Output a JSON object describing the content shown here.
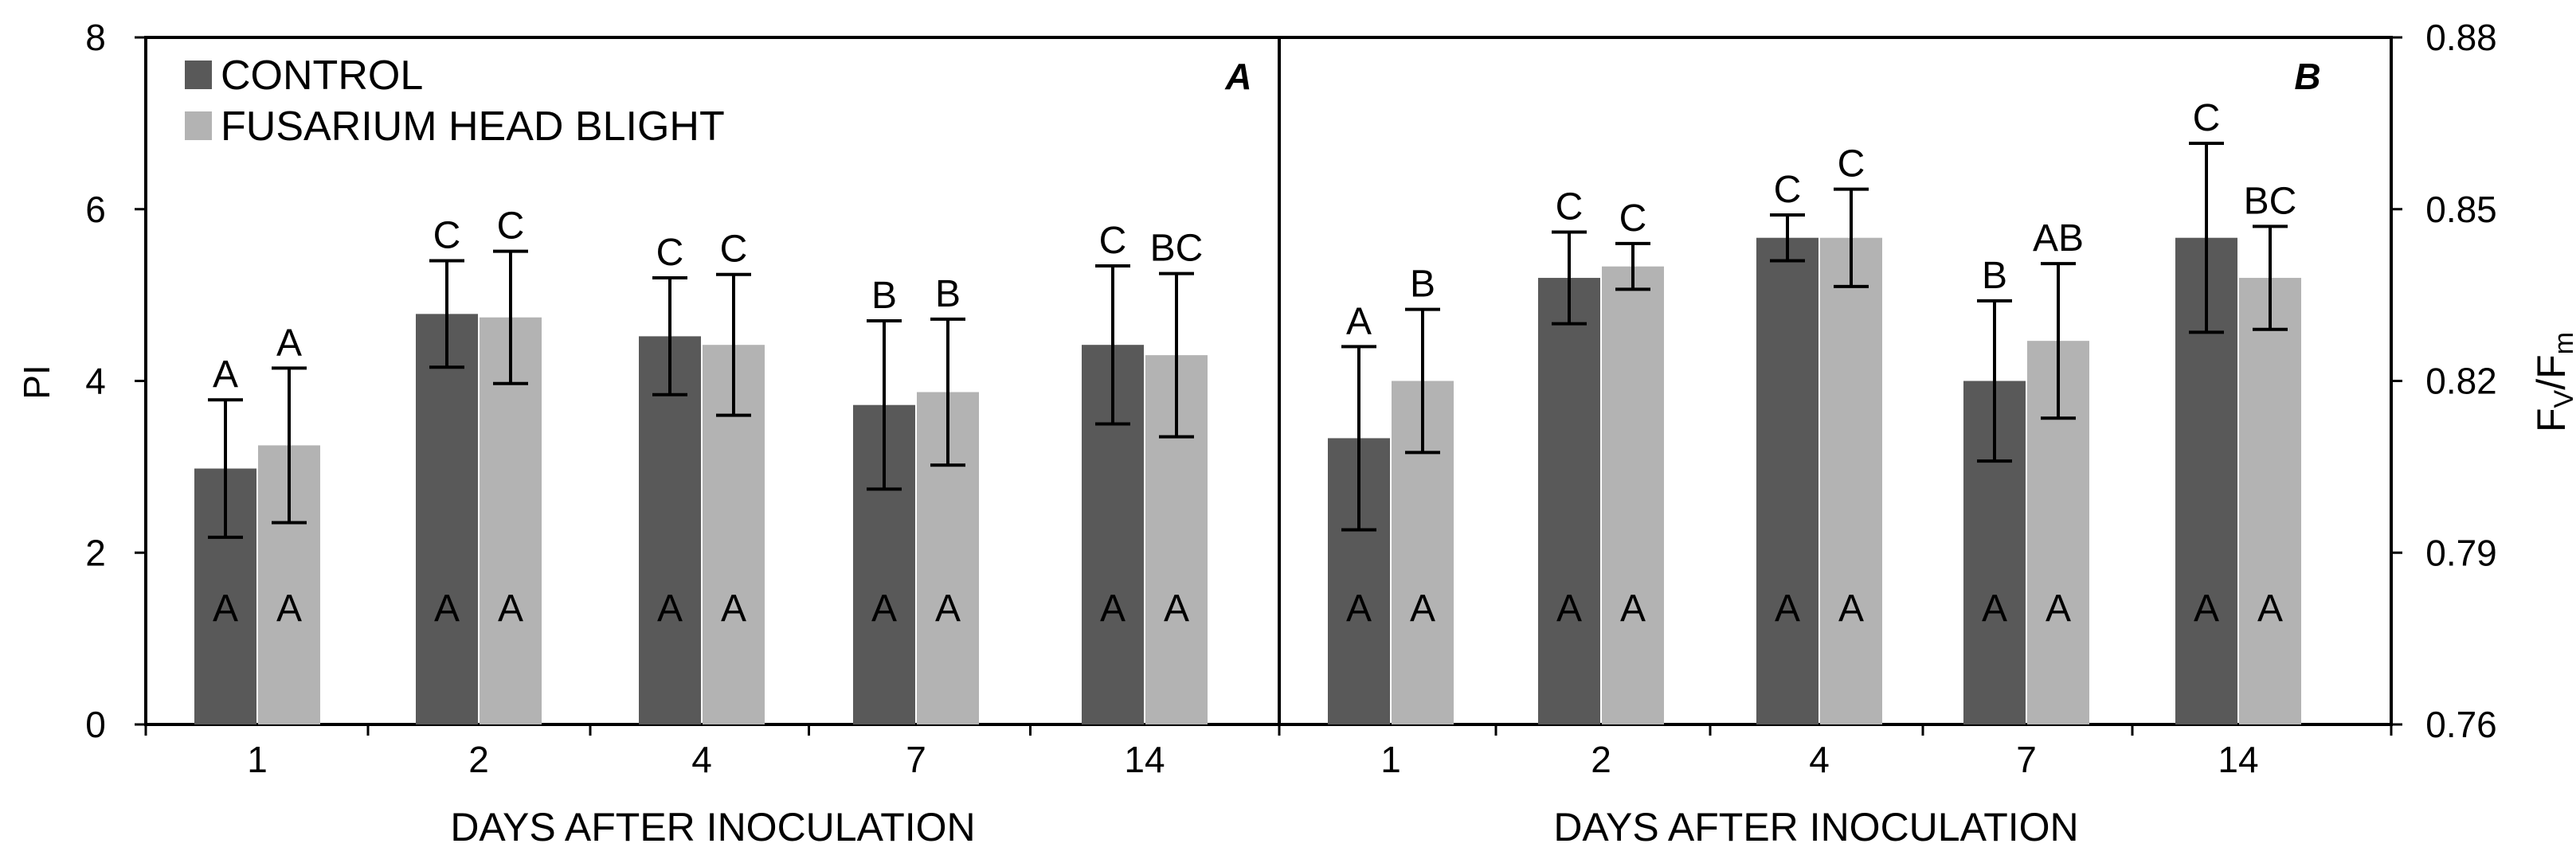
{
  "colors": {
    "control": "#595959",
    "fhb": "#b3b3b3",
    "axis": "#000000",
    "background": "#ffffff"
  },
  "legend": {
    "control_label": "CONTROL",
    "fhb_label": "FUSARIUM HEAD BLIGHT"
  },
  "chart_data": [
    {
      "type": "bar",
      "panel_label": "A",
      "title": "",
      "xlabel": "DAYS AFTER INOCULATION",
      "ylabel": "PI",
      "ylim": [
        0,
        8
      ],
      "yticks": [
        0,
        2,
        4,
        6,
        8
      ],
      "ytick_labels": [
        "0",
        "2",
        "4",
        "6",
        "8"
      ],
      "categories": [
        "1",
        "2",
        "4",
        "7",
        "14"
      ],
      "series": [
        {
          "name": "CONTROL",
          "values": [
            2.98,
            4.78,
            4.52,
            3.72,
            4.42
          ],
          "errors": [
            0.8,
            0.62,
            0.68,
            0.98,
            0.92
          ],
          "letters_top": [
            "A",
            "C",
            "C",
            "B",
            "C"
          ],
          "letters_bottom": [
            "A",
            "A",
            "A",
            "A",
            "A"
          ]
        },
        {
          "name": "FUSARIUM HEAD BLIGHT",
          "values": [
            3.25,
            4.74,
            4.42,
            3.87,
            4.3
          ],
          "errors": [
            0.9,
            0.77,
            0.82,
            0.85,
            0.95
          ],
          "letters_top": [
            "A",
            "C",
            "C",
            "B",
            "BC"
          ],
          "letters_bottom": [
            "A",
            "A",
            "A",
            "A",
            "A"
          ]
        }
      ]
    },
    {
      "type": "bar",
      "panel_label": "B",
      "title": "",
      "xlabel": "DAYS AFTER INOCULATION",
      "ylabel": "FV/Fm",
      "ylabel_parts": [
        "F",
        "V",
        "/F",
        "m"
      ],
      "ylim": [
        0.76,
        0.88
      ],
      "yticks": [
        0.76,
        0.79,
        0.82,
        0.85,
        0.88
      ],
      "ytick_labels": [
        "0.76",
        "0.79",
        "0.82",
        "0.85",
        "0.88"
      ],
      "categories": [
        "1",
        "2",
        "4",
        "7",
        "14"
      ],
      "series": [
        {
          "name": "CONTROL",
          "values": [
            0.81,
            0.838,
            0.845,
            0.82,
            0.845
          ],
          "errors": [
            0.016,
            0.008,
            0.004,
            0.014,
            0.0165
          ],
          "letters_top": [
            "A",
            "C",
            "C",
            "B",
            "C"
          ],
          "letters_bottom": [
            "A",
            "A",
            "A",
            "A",
            "A"
          ]
        },
        {
          "name": "FUSARIUM HEAD BLIGHT",
          "values": [
            0.82,
            0.84,
            0.845,
            0.827,
            0.838
          ],
          "errors": [
            0.0125,
            0.004,
            0.0085,
            0.0135,
            0.009
          ],
          "letters_top": [
            "B",
            "C",
            "C",
            "AB",
            "BC"
          ],
          "letters_bottom": [
            "A",
            "A",
            "A",
            "A",
            "A"
          ]
        }
      ]
    }
  ]
}
